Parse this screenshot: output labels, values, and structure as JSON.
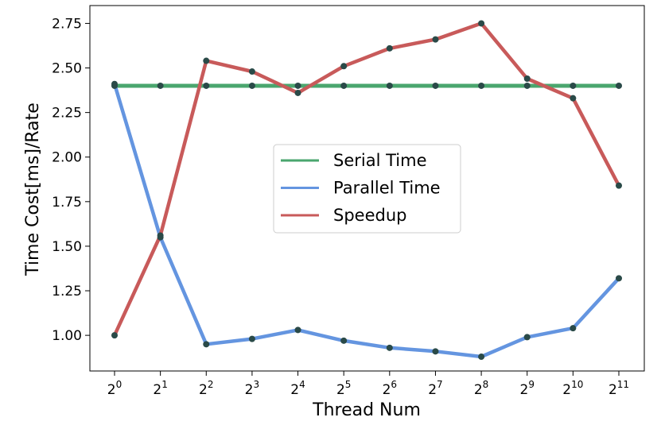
{
  "chart_data": {
    "type": "line",
    "x_categories": [
      "2^0",
      "2^1",
      "2^2",
      "2^3",
      "2^4",
      "2^5",
      "2^6",
      "2^7",
      "2^8",
      "2^9",
      "2^10",
      "2^11"
    ],
    "x_ticks": [
      {
        "base": "2",
        "exp": "0"
      },
      {
        "base": "2",
        "exp": "1"
      },
      {
        "base": "2",
        "exp": "2"
      },
      {
        "base": "2",
        "exp": "3"
      },
      {
        "base": "2",
        "exp": "4"
      },
      {
        "base": "2",
        "exp": "5"
      },
      {
        "base": "2",
        "exp": "6"
      },
      {
        "base": "2",
        "exp": "7"
      },
      {
        "base": "2",
        "exp": "8"
      },
      {
        "base": "2",
        "exp": "9"
      },
      {
        "base": "2",
        "exp": "10"
      },
      {
        "base": "2",
        "exp": "11"
      }
    ],
    "series": [
      {
        "name": "Serial Time",
        "color": "#4aa66e",
        "values": [
          2.4,
          2.4,
          2.4,
          2.4,
          2.4,
          2.4,
          2.4,
          2.4,
          2.4,
          2.4,
          2.4,
          2.4
        ]
      },
      {
        "name": "Parallel Time",
        "color": "#6495e0",
        "values": [
          2.41,
          1.55,
          0.95,
          0.98,
          1.03,
          0.97,
          0.93,
          0.91,
          0.88,
          0.99,
          1.04,
          1.32
        ]
      },
      {
        "name": "Speedup",
        "color": "#c85a5a",
        "values": [
          1.0,
          1.56,
          2.54,
          2.48,
          2.36,
          2.51,
          2.61,
          2.66,
          2.75,
          2.44,
          2.33,
          1.84
        ]
      }
    ],
    "marker_color": "#2a4a48",
    "xlabel": "Thread Num",
    "ylabel": "Time Cost[ms]/Rate",
    "ylim": [
      0.8,
      2.85
    ],
    "yticks": [
      "1.00",
      "1.25",
      "1.50",
      "1.75",
      "2.00",
      "2.25",
      "2.50",
      "2.75"
    ],
    "grid": false,
    "legend_position": "center-right"
  }
}
